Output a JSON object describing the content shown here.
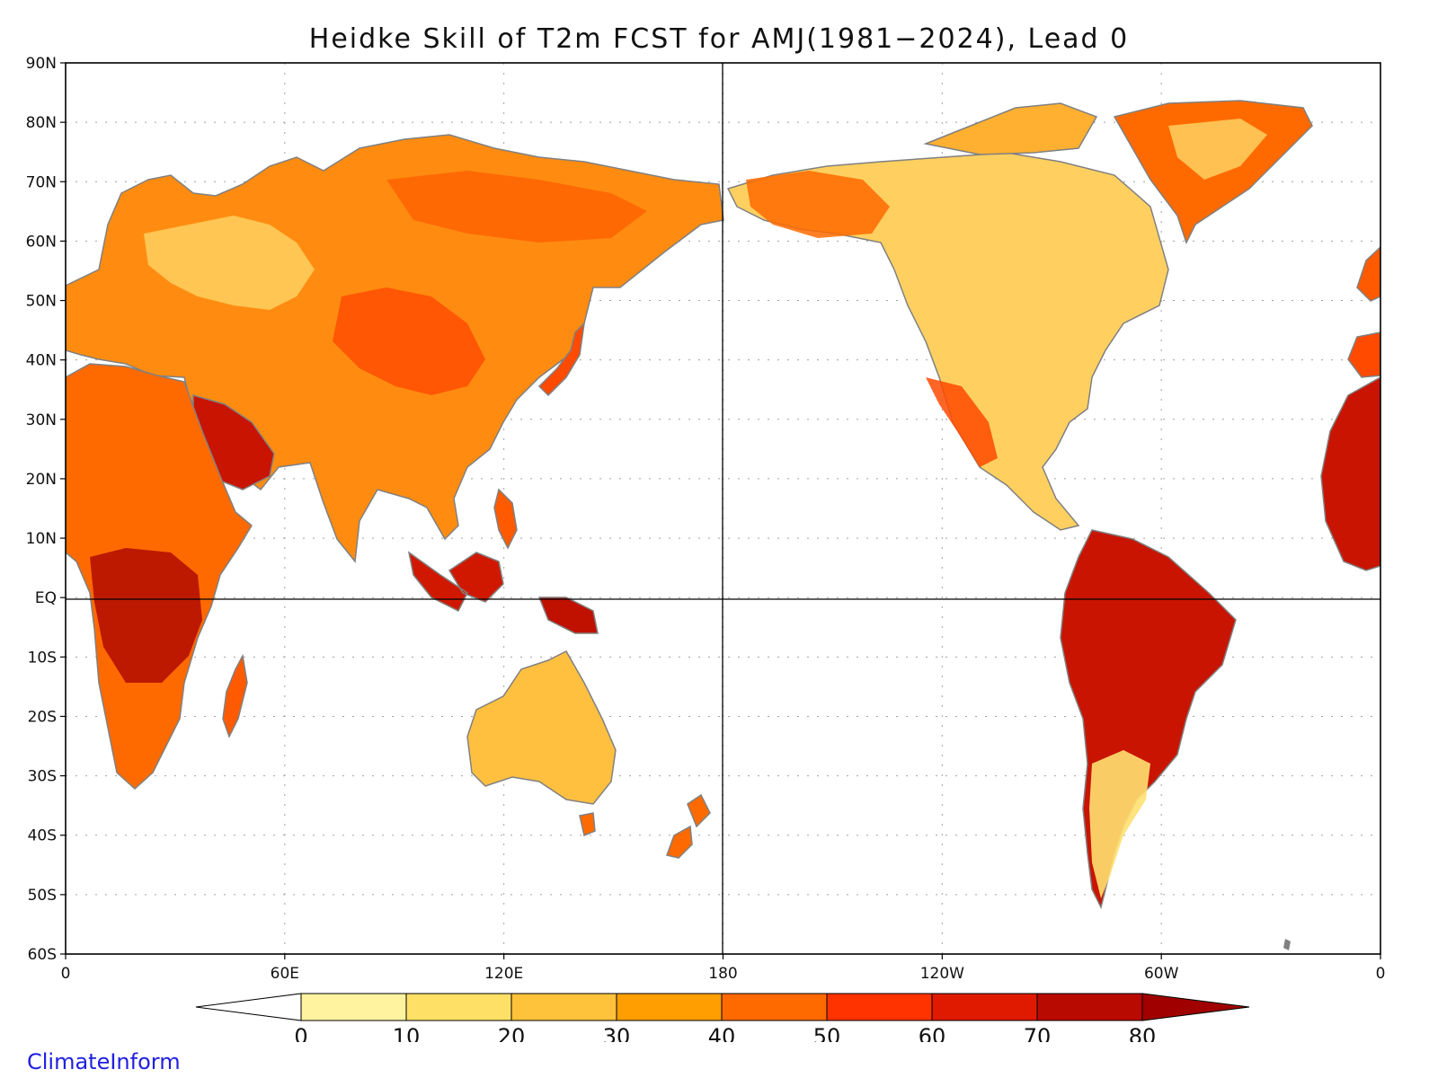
{
  "title": "Heidke Skill of T2m FCST for AMJ(1981−2024), Lead 0",
  "watermark": "ClimateInform",
  "lat_labels": [
    "90N",
    "80N",
    "70N",
    "60N",
    "50N",
    "40N",
    "30N",
    "20N",
    "10N",
    "EQ",
    "10S",
    "20S",
    "30S",
    "40S",
    "50S",
    "60S"
  ],
  "lon_labels": [
    "0",
    "60E",
    "120E",
    "180",
    "120W",
    "60W",
    "0"
  ],
  "colorbar": {
    "labels": [
      "0",
      "10",
      "20",
      "30",
      "40",
      "50",
      "60",
      "70",
      "80"
    ],
    "colors": [
      "#ffffff",
      "#fff3a0",
      "#ffe066",
      "#ffc23a",
      "#ff9e00",
      "#ff6a00",
      "#ff3300",
      "#e01a00",
      "#b80a00",
      "#a00000"
    ]
  },
  "map_colors": {
    "coast": "#808080",
    "border": "#000000",
    "lake": "#000000"
  }
}
